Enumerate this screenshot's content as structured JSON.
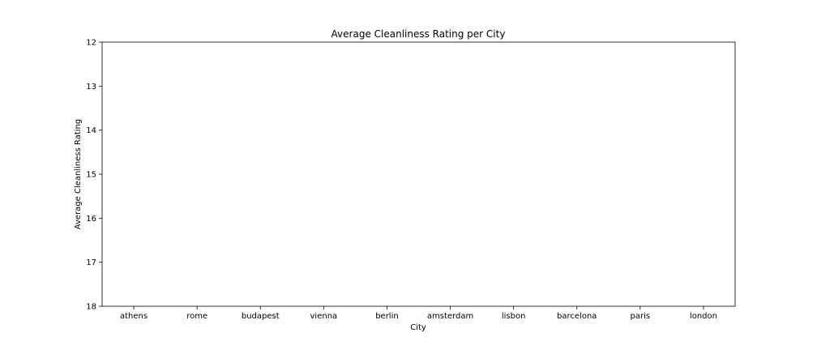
{
  "chart_data": {
    "type": "bar",
    "title": "Average Cleanliness Rating per City",
    "xlabel": "City",
    "ylabel": "Average Cleanliness Rating",
    "categories": [
      "athens",
      "rome",
      "budapest",
      "vienna",
      "berlin",
      "amsterdam",
      "lisbon",
      "barcelona",
      "paris",
      "london"
    ],
    "ylim": [
      12,
      18
    ],
    "y_inverted": true,
    "yticks": [
      12,
      13,
      14,
      15,
      16,
      17,
      18
    ],
    "grid": false,
    "legend": "none"
  }
}
